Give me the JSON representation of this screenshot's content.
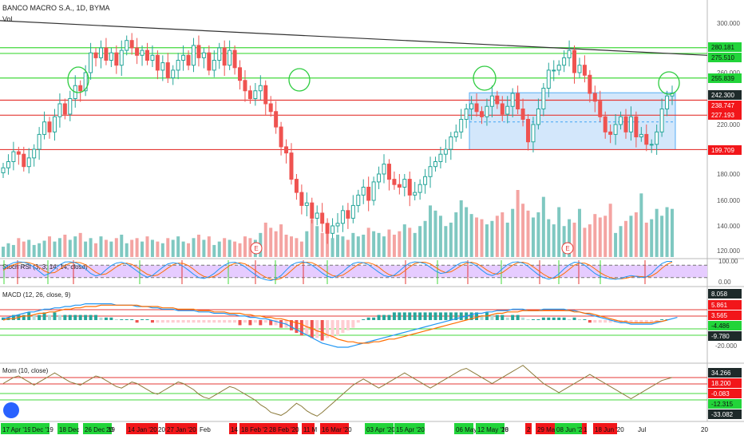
{
  "header": {
    "title": "BANCO MACRO S.A., 1D, BYMA",
    "vol_label": "Vol"
  },
  "pane_titles": {
    "stoch": "Stoch RSI (3, 3, 14, 14, close)",
    "macd": "MACD (12, 26, close, 9)",
    "mom": "Mom (10, close)"
  },
  "colors": {
    "up": "#26a69a",
    "down": "#ef5350",
    "up_vol": "#7fc8c1",
    "down_vol": "#f4a4a2",
    "res_line": "#e53935",
    "sup_line": "#43d93b",
    "trend_line": "#333333",
    "zone_fill": "#cfe5fb",
    "zone_border": "#42a5f5",
    "circle": "#2ecc40",
    "stoch_band": "#e6ccff",
    "stoch_k": "#2196f3",
    "stoch_d": "#ff6d00",
    "macd_line": "#2196f3",
    "signal_line": "#ff6d00",
    "mom_line": "#8b7a3a",
    "green_badge": "#22d43a",
    "red_badge": "#f2161a"
  },
  "price_axis_ticks": [
    "300.000",
    "260.000",
    "220.000",
    "180.000",
    "160.000",
    "140.000",
    "120.000"
  ],
  "price_labels": [
    {
      "text": "280.181",
      "kind": "green"
    },
    {
      "text": "275.510",
      "kind": "green"
    },
    {
      "text": "255.839",
      "kind": "green"
    },
    {
      "text": "242.300",
      "kind": "dark"
    },
    {
      "text": "238.747",
      "kind": "red"
    },
    {
      "text": "227.193",
      "kind": "red"
    },
    {
      "text": "199.709",
      "kind": "red"
    }
  ],
  "stoch_axis_ticks": [
    "100.00",
    "0.00"
  ],
  "macd_labels": [
    {
      "text": "8.058",
      "kind": "dark"
    },
    {
      "text": "5.861",
      "kind": "red"
    },
    {
      "text": "3.565",
      "kind": "red"
    },
    {
      "text": "-4.486",
      "kind": "green"
    },
    {
      "text": "-9.780",
      "kind": "dark"
    },
    {
      "text": "-20.000",
      "kind": "tick"
    }
  ],
  "mom_labels": [
    {
      "text": "34.266",
      "kind": "dark"
    },
    {
      "text": "18.200",
      "kind": "red"
    },
    {
      "text": "-0.083",
      "kind": "red"
    },
    {
      "text": "-12.315",
      "kind": "green"
    },
    {
      "text": "-33.082",
      "kind": "dark"
    }
  ],
  "date_labels": [
    {
      "text": "17 Apr '19",
      "kind": "green"
    },
    {
      "text": "Dec '19",
      "kind": "green"
    },
    {
      "text": "18 Dec",
      "kind": "green"
    },
    {
      "text": "26 Dec '19",
      "kind": "green"
    },
    {
      "text": "20",
      "kind": "plain"
    },
    {
      "text": "14 Jan '20",
      "kind": "red"
    },
    {
      "text": "20",
      "kind": "plain"
    },
    {
      "text": "27 Jan '20",
      "kind": "red"
    },
    {
      "text": "Feb",
      "kind": "plain"
    },
    {
      "text": "14",
      "kind": "red"
    },
    {
      "text": "18 Feb '20",
      "kind": "red"
    },
    {
      "text": "28 Feb '20",
      "kind": "red"
    },
    {
      "text": "11 M",
      "kind": "red"
    },
    {
      "text": "16 Mar '20",
      "kind": "red"
    },
    {
      "text": "03 Apr '20",
      "kind": "green"
    },
    {
      "text": "15 Apr '20",
      "kind": "green"
    },
    {
      "text": "06 May",
      "kind": "green"
    },
    {
      "text": "12 May '20",
      "kind": "green"
    },
    {
      "text": "18",
      "kind": "plain"
    },
    {
      "text": "2",
      "kind": "red"
    },
    {
      "text": "29 May '20",
      "kind": "red"
    },
    {
      "text": "08 Jun '20",
      "kind": "green"
    },
    {
      "text": "1",
      "kind": "red"
    },
    {
      "text": "18 Jun '20",
      "kind": "red"
    },
    {
      "text": "Jul",
      "kind": "plain"
    },
    {
      "text": "20",
      "kind": "plain"
    }
  ],
  "earnings_markers": [
    "E",
    "E"
  ],
  "chart_data": {
    "type": "candlestick",
    "title": "BANCO MACRO S.A., 1D, BYMA",
    "price_range": [
      112,
      310
    ],
    "horizontal_levels": [
      {
        "value": 280.181,
        "color": "green"
      },
      {
        "value": 275.51,
        "color": "green"
      },
      {
        "value": 255.839,
        "color": "green"
      },
      {
        "value": 238.747,
        "color": "red"
      },
      {
        "value": 227.193,
        "color": "red"
      },
      {
        "value": 199.709,
        "color": "red"
      }
    ],
    "last_price": 242.3,
    "trendline": {
      "from": 302,
      "to": 274
    },
    "box_zone": {
      "from_value": 244.5,
      "to_value": 199.709
    },
    "closes": [
      185,
      190,
      198,
      196,
      186,
      193,
      200,
      212,
      222,
      214,
      226,
      236,
      228,
      240,
      250,
      246,
      260,
      276,
      272,
      280,
      270,
      276,
      266,
      278,
      286,
      280,
      274,
      278,
      270,
      274,
      262,
      268,
      256,
      262,
      270,
      274,
      266,
      282,
      272,
      276,
      262,
      270,
      280,
      266,
      278,
      264,
      254,
      246,
      240,
      246,
      250,
      236,
      230,
      218,
      202,
      197,
      176,
      166,
      156,
      158,
      146,
      150,
      142,
      134,
      140,
      142,
      152,
      146,
      156,
      164,
      170,
      160,
      174,
      180,
      188,
      176,
      172,
      170,
      176,
      164,
      166,
      172,
      178,
      186,
      190,
      196,
      200,
      210,
      214,
      224,
      232,
      236,
      230,
      226,
      234,
      242,
      236,
      228,
      234,
      244,
      232,
      224,
      206,
      220,
      232,
      248,
      262,
      262,
      266,
      272,
      278,
      260,
      266,
      258,
      244,
      238,
      226,
      214,
      212,
      220,
      226,
      214,
      226,
      210,
      212,
      204,
      204,
      214,
      232,
      242,
      244
    ],
    "volumes": [
      12,
      16,
      14,
      22,
      18,
      20,
      14,
      16,
      19,
      24,
      18,
      22,
      26,
      20,
      24,
      28,
      18,
      22,
      16,
      24,
      20,
      18,
      22,
      26,
      16,
      20,
      22,
      18,
      24,
      20,
      18,
      16,
      22,
      20,
      24,
      18,
      16,
      22,
      26,
      20,
      24,
      14,
      18,
      22,
      20,
      18,
      16,
      24,
      22,
      20,
      28,
      40,
      34,
      30,
      38,
      26,
      24,
      22,
      18,
      30,
      44,
      36,
      28,
      32,
      22,
      26,
      24,
      20,
      28,
      24,
      26,
      34,
      30,
      28,
      24,
      32,
      26,
      30,
      38,
      34,
      28,
      36,
      42,
      60,
      54,
      48,
      36,
      40,
      52,
      66,
      58,
      50,
      46,
      44,
      38,
      42,
      48,
      52,
      40,
      56,
      78,
      62,
      54,
      46,
      52,
      70,
      44,
      38,
      58,
      36,
      44,
      40,
      56,
      34,
      38,
      50,
      46,
      48,
      62,
      28,
      36,
      42,
      48,
      52,
      74,
      40,
      44,
      56,
      48,
      58,
      56
    ],
    "stoch_k": [
      60,
      80,
      92,
      96,
      94,
      86,
      70,
      50,
      30,
      40,
      62,
      82,
      95,
      96,
      92,
      80,
      62,
      40,
      28,
      36,
      58,
      78,
      90,
      94,
      86,
      70,
      52,
      34,
      22,
      30,
      50,
      70,
      86,
      92,
      88,
      74,
      56,
      36,
      20,
      16,
      24,
      40,
      62,
      80,
      92,
      94,
      86,
      72,
      52,
      34,
      18,
      10,
      6,
      14,
      30,
      56,
      80,
      92,
      96,
      92,
      80,
      62,
      42,
      26,
      20,
      30,
      48,
      70,
      88,
      94,
      92,
      82,
      64,
      46,
      30,
      24,
      32,
      52,
      74,
      90,
      96,
      94,
      86,
      70,
      52,
      40,
      44,
      60,
      78,
      92,
      96,
      90,
      76,
      56,
      38,
      30,
      40,
      62,
      82,
      94,
      96,
      90,
      74,
      54,
      34,
      20,
      12,
      20,
      38,
      62,
      82,
      94,
      92,
      80,
      60,
      40,
      26,
      18,
      14,
      12,
      16,
      24,
      30,
      26,
      20,
      24,
      40,
      66,
      88,
      98,
      98
    ],
    "stoch_d": [
      56,
      70,
      82,
      90,
      94,
      92,
      84,
      70,
      52,
      42,
      44,
      60,
      78,
      90,
      94,
      92,
      82,
      64,
      46,
      34,
      38,
      54,
      72,
      86,
      90,
      84,
      70,
      52,
      36,
      28,
      32,
      48,
      66,
      82,
      90,
      88,
      78,
      60,
      40,
      26,
      20,
      26,
      40,
      60,
      78,
      88,
      92,
      86,
      72,
      54,
      36,
      22,
      12,
      10,
      16,
      32,
      54,
      76,
      90,
      94,
      92,
      80,
      62,
      44,
      30,
      26,
      32,
      48,
      66,
      84,
      92,
      92,
      84,
      70,
      50,
      34,
      28,
      34,
      52,
      72,
      88,
      94,
      94,
      86,
      70,
      54,
      44,
      48,
      62,
      78,
      90,
      94,
      88,
      74,
      56,
      42,
      36,
      44,
      62,
      80,
      92,
      94,
      88,
      72,
      54,
      36,
      22,
      16,
      24,
      40,
      60,
      80,
      90,
      90,
      80,
      62,
      44,
      30,
      20,
      15,
      14,
      17,
      23,
      27,
      25,
      23,
      28,
      43,
      65,
      84,
      95
    ],
    "macd": [
      1,
      2,
      3,
      4,
      5,
      6,
      6,
      7,
      8,
      8,
      9,
      9,
      10,
      10,
      11,
      11,
      12,
      12,
      12,
      12,
      12,
      12,
      11,
      11,
      11,
      11,
      10,
      10,
      10,
      9,
      9,
      8,
      8,
      8,
      7,
      7,
      7,
      7,
      6,
      6,
      6,
      5,
      5,
      5,
      4,
      4,
      3,
      3,
      2,
      2,
      1,
      1,
      0,
      -1,
      -2,
      -3,
      -5,
      -7,
      -9,
      -11,
      -13,
      -15,
      -17,
      -18,
      -19,
      -20,
      -20,
      -20,
      -19,
      -18,
      -17,
      -16,
      -15,
      -14,
      -13,
      -12,
      -11,
      -10,
      -9,
      -8,
      -7,
      -6,
      -5,
      -4,
      -3,
      -2,
      -1,
      0,
      1,
      2,
      3,
      4,
      5,
      5,
      6,
      6,
      7,
      7,
      7,
      8,
      8,
      8,
      7,
      7,
      7,
      8,
      8,
      8,
      8,
      8,
      7,
      7,
      6,
      5,
      4,
      3,
      2,
      1,
      0,
      -1,
      -2,
      -2,
      -3,
      -3,
      -3,
      -3,
      -3,
      -2,
      -1,
      0,
      1,
      2
    ],
    "macd_signal": [
      0,
      1,
      1,
      2,
      3,
      3,
      4,
      5,
      5,
      6,
      6,
      7,
      8,
      8,
      9,
      9,
      10,
      10,
      10,
      11,
      11,
      11,
      11,
      11,
      11,
      11,
      11,
      10,
      10,
      10,
      10,
      9,
      9,
      9,
      8,
      8,
      8,
      8,
      7,
      7,
      7,
      6,
      6,
      6,
      5,
      5,
      5,
      4,
      4,
      3,
      3,
      2,
      2,
      1,
      1,
      0,
      -1,
      -2,
      -3,
      -5,
      -6,
      -8,
      -9,
      -11,
      -12,
      -14,
      -15,
      -16,
      -16,
      -17,
      -17,
      -17,
      -16,
      -16,
      -15,
      -14,
      -14,
      -13,
      -12,
      -11,
      -10,
      -9,
      -8,
      -7,
      -6,
      -5,
      -4,
      -3,
      -2,
      -1,
      0,
      1,
      2,
      3,
      3,
      4,
      5,
      5,
      6,
      6,
      6,
      7,
      7,
      7,
      7,
      7,
      7,
      7,
      7,
      7,
      7,
      6,
      6,
      5,
      5,
      4,
      3,
      2,
      1,
      0,
      -1,
      -1,
      -2,
      -2,
      -2,
      -2,
      -2,
      -1,
      -1,
      0
    ],
    "momentum": [
      10,
      14,
      18,
      20,
      16,
      12,
      8,
      12,
      16,
      20,
      24,
      20,
      16,
      12,
      10,
      8,
      12,
      16,
      20,
      18,
      14,
      10,
      6,
      4,
      8,
      12,
      10,
      6,
      2,
      -2,
      -4,
      0,
      4,
      8,
      12,
      10,
      6,
      2,
      -4,
      -8,
      -10,
      -6,
      -2,
      2,
      6,
      4,
      0,
      -4,
      -8,
      -12,
      -18,
      -22,
      -28,
      -30,
      -32,
      -28,
      -22,
      -16,
      -20,
      -26,
      -30,
      -33,
      -28,
      -22,
      -16,
      -10,
      -4,
      2,
      8,
      12,
      16,
      12,
      8,
      4,
      8,
      12,
      16,
      20,
      24,
      20,
      16,
      12,
      8,
      4,
      8,
      12,
      16,
      20,
      24,
      28,
      30,
      26,
      22,
      18,
      14,
      10,
      14,
      18,
      22,
      26,
      30,
      34,
      28,
      22,
      16,
      10,
      6,
      2,
      -2,
      2,
      6,
      10,
      14,
      18,
      22,
      18,
      14,
      10,
      6,
      2,
      -2,
      -6,
      -10,
      -6,
      -2,
      2,
      6,
      10,
      14,
      16,
      18
    ]
  }
}
